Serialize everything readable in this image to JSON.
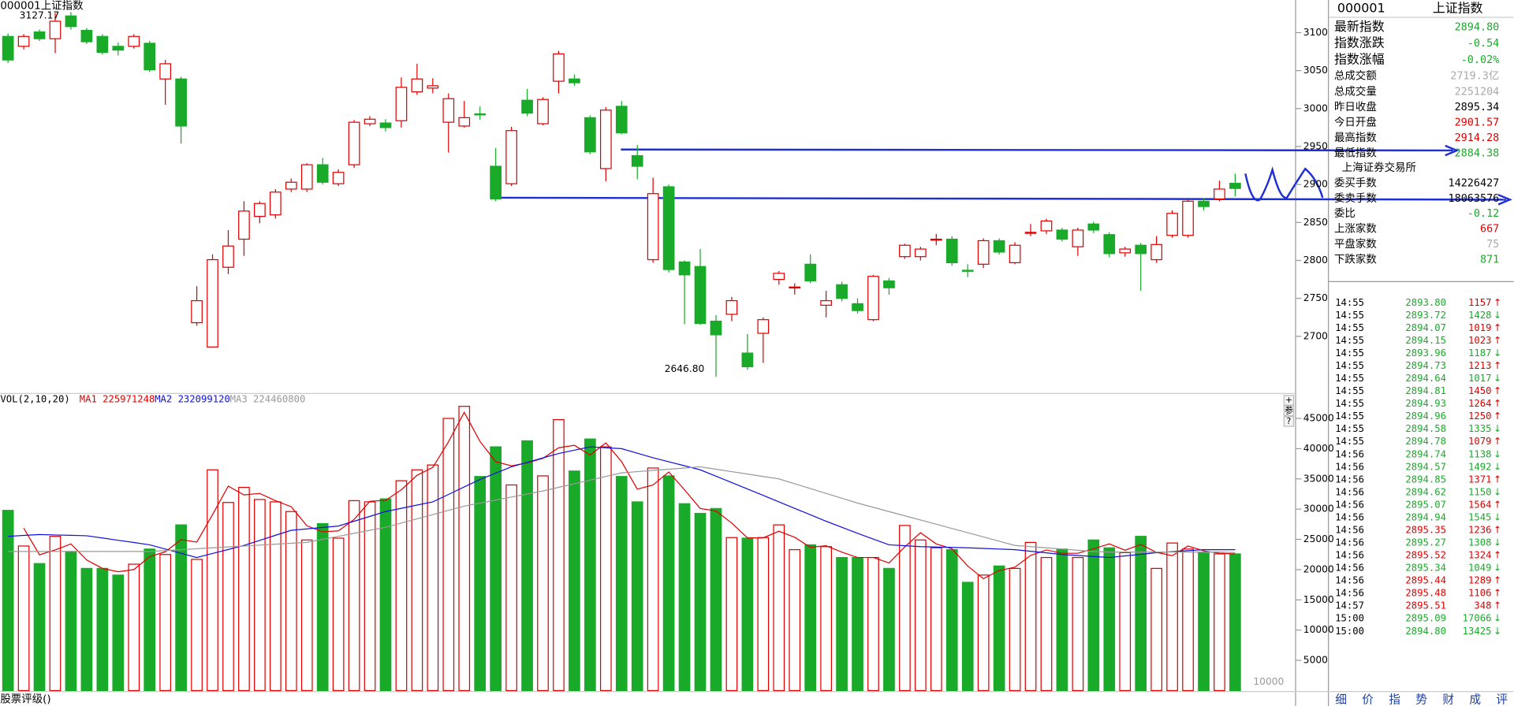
{
  "chart_data": [
    {
      "type": "candlestick",
      "title": "000001上证指数",
      "up_color": "#e00000",
      "down_color": "#1aaa2a",
      "high_label": "3127.17",
      "low_label": "2646.80",
      "ylim": [
        2626,
        3143
      ],
      "yticks": [
        2700,
        2750,
        2800,
        2850,
        2900,
        2950,
        3000,
        3050,
        3100
      ],
      "ohlc": [
        [
          3095,
          3064,
          3099,
          3060
        ],
        [
          3082,
          3095,
          3098,
          3078
        ],
        [
          3101,
          3092,
          3104,
          3089
        ],
        [
          3092,
          3115,
          3126,
          3073
        ],
        [
          3122,
          3108,
          3127.17,
          3104
        ],
        [
          3103,
          3088,
          3106,
          3085
        ],
        [
          3095,
          3074,
          3098,
          3071
        ],
        [
          3082,
          3077,
          3087,
          3070
        ],
        [
          3082,
          3095,
          3098,
          3079
        ],
        [
          3086,
          3051,
          3089,
          3048
        ],
        [
          3039,
          3059,
          3064,
          3005
        ],
        [
          3039,
          2977,
          3042,
          2954
        ],
        [
          2718,
          2747,
          2766,
          2714
        ],
        [
          2686,
          2801,
          2808,
          2686
        ],
        [
          2791,
          2819,
          2840,
          2782
        ],
        [
          2828,
          2865,
          2878,
          2806
        ],
        [
          2858,
          2875,
          2878,
          2849
        ],
        [
          2860,
          2890,
          2894,
          2855
        ],
        [
          2894,
          2903,
          2908,
          2890
        ],
        [
          2894,
          2926,
          2928,
          2890
        ],
        [
          2926,
          2903,
          2935,
          2900
        ],
        [
          2901,
          2916,
          2920,
          2898
        ],
        [
          2926,
          2982,
          2985,
          2922
        ],
        [
          2980,
          2986,
          2990,
          2977
        ],
        [
          2981,
          2975,
          2986,
          2970
        ],
        [
          2984,
          3028,
          3041,
          2975
        ],
        [
          3022,
          3039,
          3059,
          3018
        ],
        [
          3027,
          3030,
          3040,
          3020
        ],
        [
          2982,
          3013,
          3020,
          2942
        ],
        [
          2977,
          2988,
          3010,
          2975
        ],
        [
          2993,
          2992,
          3003,
          2985
        ],
        [
          2924,
          2881,
          2948,
          2878
        ],
        [
          2901,
          2971,
          2976,
          2898
        ],
        [
          3011,
          2994,
          3026,
          2990
        ],
        [
          2980,
          3012,
          3015,
          2978
        ],
        [
          3036,
          3072,
          3076,
          3020
        ],
        [
          3039,
          3034,
          3045,
          3030
        ],
        [
          2988,
          2943,
          2991,
          2940
        ],
        [
          2921,
          2998,
          3002,
          2904
        ],
        [
          3003,
          2968,
          3010,
          2966
        ],
        [
          2938,
          2924,
          2952,
          2907
        ],
        [
          2801,
          2888,
          2909,
          2797
        ],
        [
          2897,
          2788,
          2900,
          2784
        ],
        [
          2798,
          2781,
          2800,
          2716
        ],
        [
          2792,
          2717,
          2815,
          2715
        ],
        [
          2720,
          2702,
          2728,
          2646.8
        ],
        [
          2729,
          2747,
          2752,
          2720
        ],
        [
          2678,
          2660,
          2703,
          2656
        ],
        [
          2704,
          2722,
          2725,
          2665
        ],
        [
          2775,
          2783,
          2786,
          2768
        ],
        [
          2764,
          2765,
          2770,
          2755
        ],
        [
          2795,
          2773,
          2808,
          2770
        ],
        [
          2741,
          2747,
          2760,
          2725
        ],
        [
          2768,
          2750,
          2772,
          2746
        ],
        [
          2743,
          2734,
          2750,
          2730
        ],
        [
          2722,
          2779,
          2781,
          2720
        ],
        [
          2773,
          2764,
          2777,
          2755
        ],
        [
          2805,
          2820,
          2822,
          2802
        ],
        [
          2805,
          2815,
          2818,
          2800
        ],
        [
          2827,
          2828,
          2835,
          2820
        ],
        [
          2828,
          2797,
          2832,
          2793
        ],
        [
          2787,
          2786,
          2795,
          2778
        ],
        [
          2795,
          2826,
          2829,
          2790
        ],
        [
          2826,
          2811,
          2829,
          2808
        ],
        [
          2797,
          2820,
          2824,
          2795
        ],
        [
          2836,
          2837,
          2848,
          2832
        ],
        [
          2839,
          2852,
          2855,
          2835
        ],
        [
          2840,
          2828,
          2843,
          2825
        ],
        [
          2818,
          2840,
          2843,
          2806
        ],
        [
          2848,
          2840,
          2851,
          2836
        ],
        [
          2834,
          2809,
          2837,
          2804
        ],
        [
          2810,
          2815,
          2818,
          2805
        ],
        [
          2820,
          2809,
          2823,
          2760
        ],
        [
          2801,
          2821,
          2832,
          2797
        ],
        [
          2833,
          2862,
          2866,
          2830
        ],
        [
          2833,
          2878,
          2880,
          2830
        ],
        [
          2878,
          2871,
          2882,
          2866
        ],
        [
          2881,
          2894,
          2905,
          2878
        ],
        [
          2901.57,
          2894.8,
          2914.28,
          2884.38
        ]
      ]
    },
    {
      "type": "volume",
      "title": "VOL(2,10,20)",
      "unit_label": "10000",
      "ylim": [
        0,
        48800
      ],
      "yticks": [
        5000,
        10000,
        15000,
        20000,
        25000,
        30000,
        35000,
        40000,
        45000
      ],
      "values": [
        29800,
        23900,
        21000,
        25500,
        23000,
        20200,
        20200,
        19100,
        20900,
        23400,
        22500,
        27400,
        21700,
        36500,
        31100,
        33600,
        31600,
        31200,
        29600,
        24900,
        27600,
        25200,
        31400,
        31200,
        31700,
        34700,
        36500,
        37300,
        45000,
        47000,
        35400,
        40300,
        34000,
        41300,
        35500,
        44800,
        36300,
        41600,
        40300,
        35400,
        31200,
        36800,
        35500,
        30900,
        29300,
        30100,
        25300,
        25200,
        25300,
        27400,
        23300,
        24100,
        23800,
        22000,
        22000,
        22000,
        20200,
        27300,
        24900,
        23600,
        23300,
        17900,
        19100,
        20600,
        20200,
        24500,
        22000,
        23400,
        22000,
        24900,
        23600,
        22800,
        25500,
        20200,
        24400,
        23400,
        22800,
        22600,
        22600
      ],
      "series": [
        {
          "name": "MA1",
          "label": "225971248",
          "color": "#e00000",
          "values": [
            null,
            26850,
            22450,
            23250,
            24250,
            21600,
            20200,
            19650,
            20000,
            22150,
            22950,
            24950,
            24550,
            29100,
            33800,
            32350,
            32600,
            31400,
            30400,
            27250,
            26250,
            26400,
            28300,
            31300,
            31450,
            33200,
            35600,
            36900,
            41150,
            46000,
            41200,
            37850,
            37150,
            37650,
            38400,
            40150,
            40550,
            38950,
            40950,
            37850,
            33300,
            34000,
            36150,
            33200,
            30100,
            29700,
            27700,
            25250,
            25250,
            26350,
            25350,
            23700,
            23950,
            22900,
            22000,
            22000,
            21100,
            23750,
            26100,
            24250,
            23450,
            20600,
            18500,
            19850,
            20400,
            22350,
            23250,
            22700,
            22700,
            23450,
            24250,
            23200,
            24150,
            22850,
            22300,
            23900,
            23100,
            22700,
            22600
          ]
        },
        {
          "name": "MA2",
          "label": "232099120",
          "color": "#1010e0",
          "values": [
            25500,
            25650,
            25800,
            25730,
            25670,
            25600,
            25230,
            24850,
            24480,
            24100,
            23400,
            22700,
            22000,
            22670,
            23330,
            24000,
            24830,
            25670,
            26500,
            26730,
            26970,
            27200,
            28000,
            28800,
            29600,
            30130,
            30670,
            31200,
            32430,
            33670,
            34900,
            35950,
            37000,
            37730,
            38470,
            39200,
            39750,
            40300,
            40150,
            40000,
            39250,
            38500,
            37830,
            37170,
            36500,
            35450,
            34400,
            33330,
            32270,
            31200,
            30130,
            29070,
            28000,
            27000,
            26000,
            25050,
            24100,
            23950,
            23800,
            23730,
            23670,
            23600,
            23500,
            23400,
            23300,
            23030,
            22770,
            22500,
            22330,
            22170,
            22000,
            22270,
            22530,
            22800,
            22970,
            23130,
            23300,
            23300,
            23300
          ]
        },
        {
          "name": "MA3",
          "label": "224460800",
          "color": "#999999",
          "values": [
            23000,
            23000,
            23000,
            23000,
            23000,
            23000,
            23000,
            23000,
            23000,
            23000,
            23150,
            23300,
            23450,
            23600,
            23750,
            23900,
            24050,
            24200,
            24350,
            24500,
            25000,
            25500,
            26000,
            26500,
            27000,
            27700,
            28400,
            29100,
            29800,
            30500,
            31000,
            31500,
            32000,
            32500,
            33000,
            33600,
            34200,
            34800,
            35400,
            36000,
            36200,
            36400,
            36600,
            36800,
            37000,
            36600,
            36200,
            35800,
            35400,
            35000,
            34200,
            33400,
            32600,
            31800,
            31000,
            30300,
            29600,
            28900,
            28200,
            27500,
            26800,
            26100,
            25400,
            24700,
            24000,
            23800,
            23600,
            23400,
            23200,
            23000,
            22900,
            22900,
            22900,
            22900,
            22900,
            22900,
            22900,
            22900,
            22800
          ]
        }
      ]
    }
  ],
  "footer": "股票评级()",
  "controls": [
    "+",
    "参",
    "?"
  ],
  "panel": {
    "code": "000001",
    "name": "上证指数",
    "quote": [
      {
        "label": "最新指数",
        "value": "2894.80",
        "color": "#1aaa2a"
      },
      {
        "label": "指数涨跌",
        "value": "-0.54",
        "color": "#1aaa2a"
      },
      {
        "label": "指数涨幅",
        "value": "-0.02%",
        "color": "#1aaa2a"
      },
      {
        "label": "总成交额",
        "value": "2719.3亿",
        "color": "#aaaaaa"
      },
      {
        "label": "总成交量",
        "value": "2251204",
        "color": "#aaaaaa"
      },
      {
        "label": "昨日收盘",
        "value": "2895.34",
        "color": "#000000"
      },
      {
        "label": "今日开盘",
        "value": "2901.57",
        "color": "#e00000"
      },
      {
        "label": "最高指数",
        "value": "2914.28",
        "color": "#e00000"
      },
      {
        "label": "最低指数",
        "value": "2884.38",
        "color": "#1aaa2a"
      }
    ],
    "exchange": "上海证券交易所",
    "orders": [
      {
        "label": "委买手数",
        "value": "14226427",
        "color": "#000000"
      },
      {
        "label": "委卖手数",
        "value": "18063576",
        "color": "#000000"
      },
      {
        "label": "委比",
        "value": "-0.12",
        "color": "#1aaa2a"
      },
      {
        "label": "上涨家数",
        "value": "667",
        "color": "#e00000"
      },
      {
        "label": "平盘家数",
        "value": "75",
        "color": "#aaaaaa"
      },
      {
        "label": "下跌家数",
        "value": "871",
        "color": "#1aaa2a"
      }
    ],
    "ticks": [
      [
        "14:55",
        "2893.80",
        "1157",
        "↑"
      ],
      [
        "14:55",
        "2893.72",
        "1428",
        "↓"
      ],
      [
        "14:55",
        "2894.07",
        "1019",
        "↑"
      ],
      [
        "14:55",
        "2894.15",
        "1023",
        "↑"
      ],
      [
        "14:55",
        "2893.96",
        "1187",
        "↓"
      ],
      [
        "14:55",
        "2894.73",
        "1213",
        "↑"
      ],
      [
        "14:55",
        "2894.64",
        "1017",
        "↓"
      ],
      [
        "14:55",
        "2894.81",
        "1450",
        "↑"
      ],
      [
        "14:55",
        "2894.93",
        "1264",
        "↑"
      ],
      [
        "14:55",
        "2894.96",
        "1250",
        "↑"
      ],
      [
        "14:55",
        "2894.58",
        "1335",
        "↓"
      ],
      [
        "14:55",
        "2894.78",
        "1079",
        "↑"
      ],
      [
        "14:56",
        "2894.74",
        "1138",
        "↓"
      ],
      [
        "14:56",
        "2894.57",
        "1492",
        "↓"
      ],
      [
        "14:56",
        "2894.85",
        "1371",
        "↑"
      ],
      [
        "14:56",
        "2894.62",
        "1150",
        "↓"
      ],
      [
        "14:56",
        "2895.07",
        "1564",
        "↑"
      ],
      [
        "14:56",
        "2894.94",
        "1545",
        "↓"
      ],
      [
        "14:56",
        "2895.35",
        "1236",
        "↑"
      ],
      [
        "14:56",
        "2895.27",
        "1308",
        "↓"
      ],
      [
        "14:56",
        "2895.52",
        "1324",
        "↑"
      ],
      [
        "14:56",
        "2895.34",
        "1049",
        "↓"
      ],
      [
        "14:56",
        "2895.44",
        "1289",
        "↑"
      ],
      [
        "14:56",
        "2895.48",
        "1106",
        "↑"
      ],
      [
        "14:57",
        "2895.51",
        "348",
        "↑"
      ],
      [
        "15:00",
        "2895.09",
        "17066",
        "↓"
      ],
      [
        "15:00",
        "2894.80",
        "13425",
        "↓"
      ]
    ],
    "tabs": [
      "细",
      "价",
      "指",
      "势",
      "财",
      "成",
      "评"
    ]
  }
}
